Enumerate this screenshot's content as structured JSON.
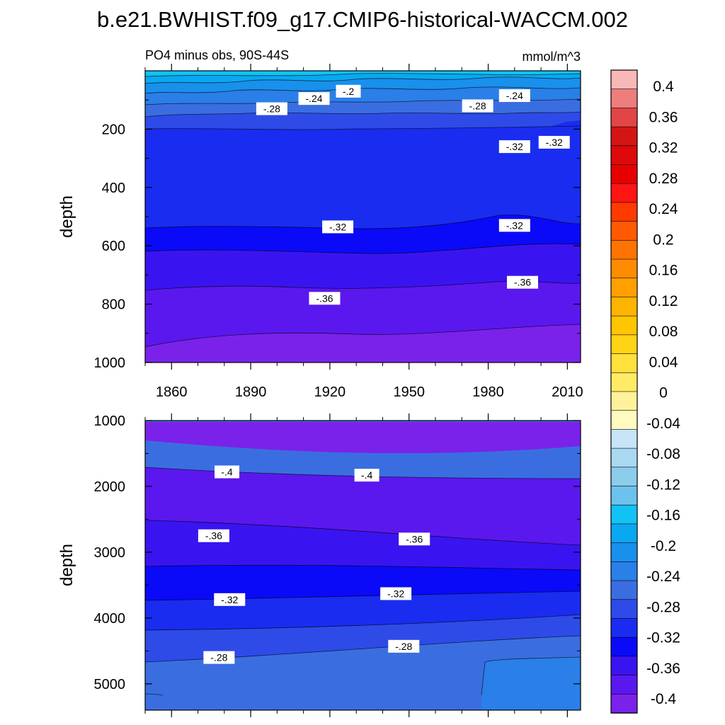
{
  "title": "b.e21.BWHIST.f09_g17.CMIP6-historical-WACCM.002",
  "subtitle_left": "PO4 minus obs, 90S-44S",
  "subtitle_right": "mmol/m^3",
  "chart_data": [
    {
      "type": "heatmap",
      "panel": "upper",
      "ylabel": "depth",
      "x_ticks": [
        1860,
        1890,
        1920,
        1950,
        1980,
        2010
      ],
      "x_range": [
        1850,
        2015
      ],
      "ylim": [
        1000,
        0
      ],
      "y_ticks": [
        200,
        400,
        600,
        800,
        1000
      ],
      "contour_labels": [
        {
          "text": "-.2",
          "x": 1927,
          "y": 70
        },
        {
          "text": "-.24",
          "x": 1914,
          "y": 95
        },
        {
          "text": "-.24",
          "x": 1990,
          "y": 85
        },
        {
          "text": "-.28",
          "x": 1898,
          "y": 130
        },
        {
          "text": "-.28",
          "x": 1976,
          "y": 120
        },
        {
          "text": "-.32",
          "x": 1990,
          "y": 260
        },
        {
          "text": "-.32",
          "x": 2005,
          "y": 245
        },
        {
          "text": "-.32",
          "x": 1923,
          "y": 535
        },
        {
          "text": "-.32",
          "x": 1990,
          "y": 530
        },
        {
          "text": "-.36",
          "x": 1918,
          "y": 780
        },
        {
          "text": "-.36",
          "x": 1993,
          "y": 725
        }
      ]
    },
    {
      "type": "heatmap",
      "panel": "lower",
      "ylabel": "depth",
      "x_range": [
        1850,
        2015
      ],
      "ylim": [
        5400,
        1000
      ],
      "y_ticks": [
        1000,
        2000,
        3000,
        4000,
        5000
      ],
      "contour_labels": [
        {
          "text": "-.4",
          "x": 1881,
          "y": 1780
        },
        {
          "text": "-.4",
          "x": 1934,
          "y": 1830
        },
        {
          "text": "-.36",
          "x": 1876,
          "y": 2750
        },
        {
          "text": "-.36",
          "x": 1952,
          "y": 2800
        },
        {
          "text": "-.32",
          "x": 1882,
          "y": 3720
        },
        {
          "text": "-.32",
          "x": 1945,
          "y": 3630
        },
        {
          "text": "-.28",
          "x": 1878,
          "y": 4600
        },
        {
          "text": "-.28",
          "x": 1948,
          "y": 4430
        }
      ]
    }
  ],
  "colorbar": {
    "labels": [
      "0.4",
      "0.36",
      "0.32",
      "0.28",
      "0.24",
      "0.2",
      "0.16",
      "0.12",
      "0.08",
      "0.04",
      "0",
      "-0.04",
      "-0.08",
      "-0.12",
      "-0.16",
      "-0.2",
      "-0.24",
      "-0.28",
      "-0.32",
      "-0.36",
      "-0.4"
    ],
    "colors": [
      "#F9B8B8",
      "#EE7D7D",
      "#E24545",
      "#D41515",
      "#DC0A0A",
      "#E60000",
      "#FF1414",
      "#FF3A00",
      "#FF5A00",
      "#FF7400",
      "#FF8C00",
      "#FFA000",
      "#FFB400",
      "#FFC500",
      "#FFD316",
      "#FFE03C",
      "#FFEB66",
      "#FFF29A",
      "#FFFAC0",
      "#C7E5F6",
      "#A9D9F1",
      "#8CCDEC",
      "#6CC2EC",
      "#12C2F5",
      "#0AA8F0",
      "#1890EC",
      "#2A7FE8",
      "#3A6EE0",
      "#2E4BE8",
      "#1A2CF0",
      "#0A0AF8",
      "#3A14F0",
      "#5A18EE",
      "#7A22EA"
    ]
  }
}
